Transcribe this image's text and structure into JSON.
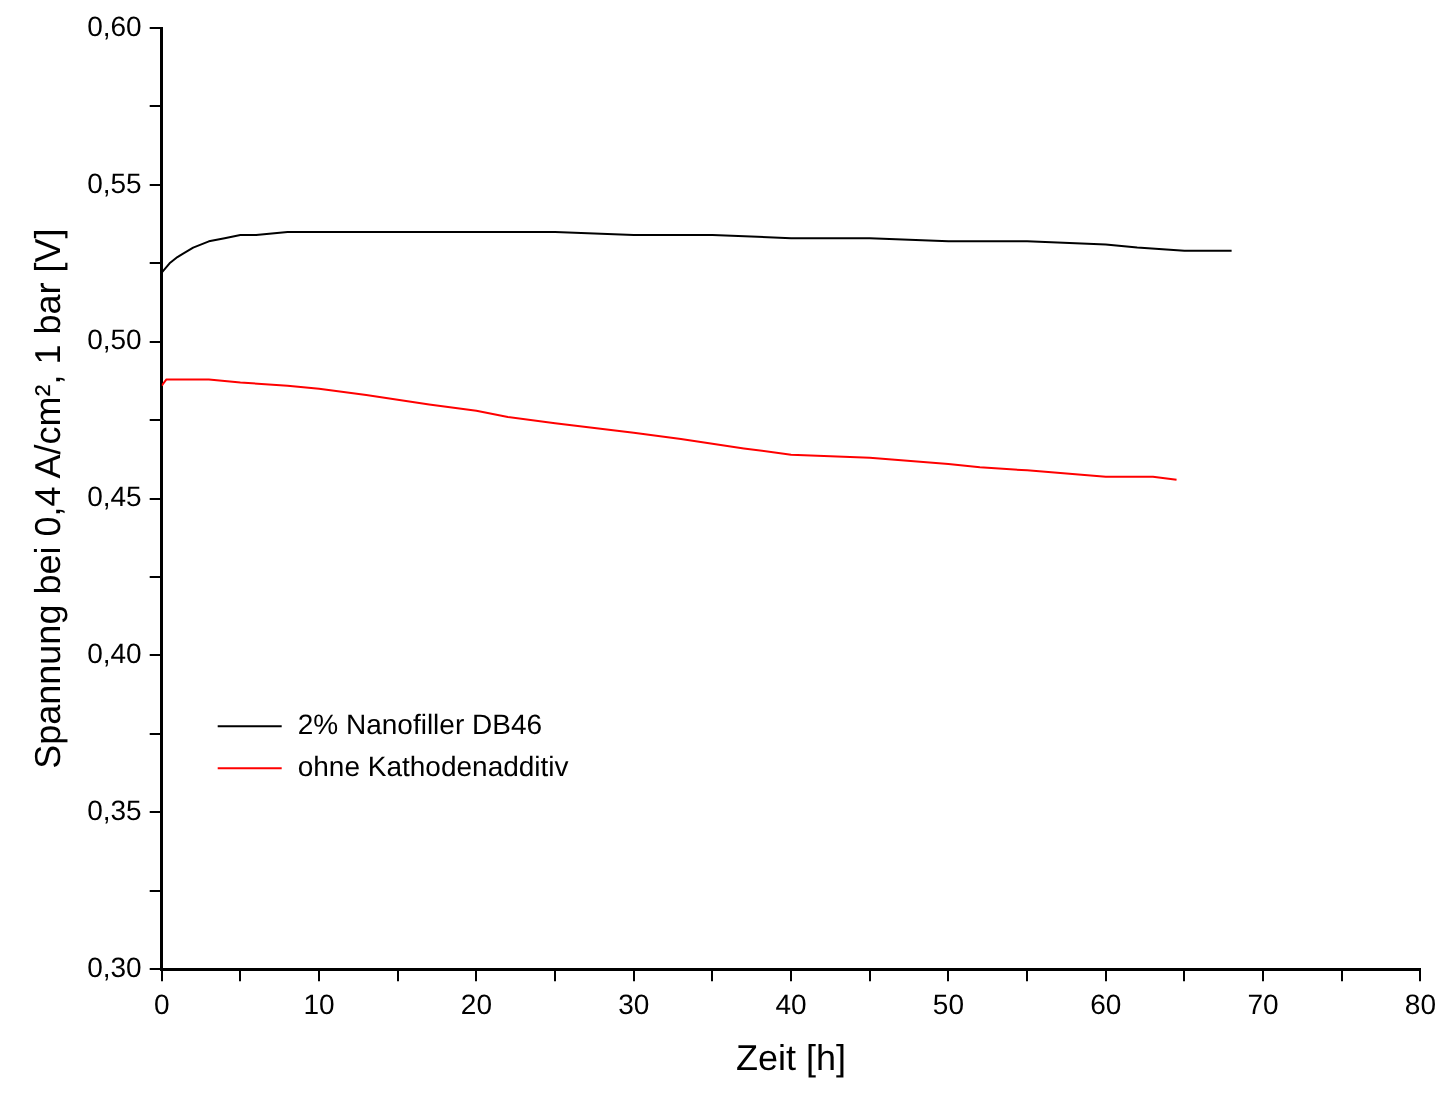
{
  "chart_data": {
    "type": "line",
    "xlabel": "Zeit [h]",
    "ylabel": "Spannung bei 0,4 A/cm², 1 bar [V]",
    "xlim": [
      0,
      80
    ],
    "xticks": [
      0,
      {
        "value": 5,
        "label": null
      },
      10,
      {
        "value": 15,
        "label": null
      },
      20,
      {
        "value": 25,
        "label": null
      },
      30,
      {
        "value": 35,
        "label": null
      },
      40,
      {
        "value": 45,
        "label": null
      },
      50,
      {
        "value": 55,
        "label": null
      },
      60,
      {
        "value": 65,
        "label": null
      },
      70,
      {
        "value": 75,
        "label": null
      },
      80
    ],
    "ylim": [
      0.3,
      0.6
    ],
    "yticks": [
      {
        "value": 0.3,
        "label": "0,30"
      },
      {
        "value": 0.325,
        "label": null
      },
      {
        "value": 0.35,
        "label": "0,35"
      },
      {
        "value": 0.375,
        "label": null
      },
      {
        "value": 0.4,
        "label": "0,40"
      },
      {
        "value": 0.425,
        "label": null
      },
      {
        "value": 0.45,
        "label": "0,45"
      },
      {
        "value": 0.475,
        "label": null
      },
      {
        "value": 0.5,
        "label": "0,50"
      },
      {
        "value": 0.525,
        "label": null
      },
      {
        "value": 0.55,
        "label": "0,55"
      },
      {
        "value": 0.575,
        "label": null
      },
      {
        "value": 0.6,
        "label": "0,60"
      }
    ],
    "grid": false,
    "legend": "bottom left",
    "marker": "none",
    "line_style": "solid",
    "series": [
      {
        "name": "2% Nanofiller DB46",
        "color": "#000000",
        "x": [
          0,
          0.5,
          1,
          2,
          3,
          4,
          5,
          6,
          8,
          10,
          15,
          20,
          25,
          30,
          35,
          40,
          45,
          50,
          55,
          60,
          62,
          65,
          68
        ],
        "values": [
          0.522,
          0.525,
          0.527,
          0.53,
          0.532,
          0.533,
          0.534,
          0.534,
          0.535,
          0.535,
          0.535,
          0.535,
          0.535,
          0.534,
          0.534,
          0.533,
          0.533,
          0.532,
          0.532,
          0.531,
          0.53,
          0.529,
          0.529
        ]
      },
      {
        "name": "ohne Kathodenadditiv",
        "color": "#ff0000",
        "x": [
          0,
          0.3,
          1,
          3,
          5,
          8,
          10,
          13,
          17,
          20,
          22,
          25,
          30,
          33,
          37,
          40,
          45,
          50,
          52,
          55,
          60,
          63,
          64.5
        ],
        "values": [
          0.486,
          0.488,
          0.488,
          0.488,
          0.487,
          0.486,
          0.485,
          0.483,
          0.48,
          0.478,
          0.476,
          0.474,
          0.471,
          0.469,
          0.466,
          0.464,
          0.463,
          0.461,
          0.46,
          0.459,
          0.457,
          0.457,
          0.456
        ]
      }
    ]
  }
}
